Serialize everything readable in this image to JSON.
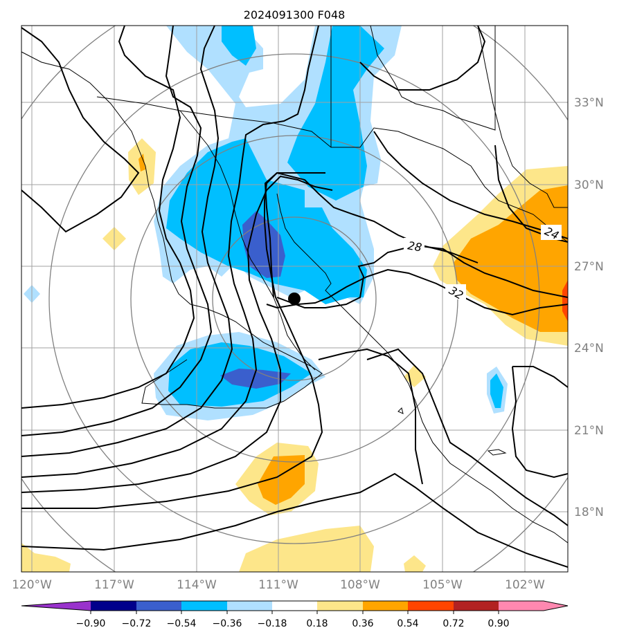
{
  "title": "2024091300 F048",
  "map": {
    "lat_labels": [
      "33°N",
      "30°N",
      "27°N",
      "24°N",
      "21°N",
      "18°N"
    ],
    "lon_labels": [
      "120°W",
      "117°W",
      "114°W",
      "111°W",
      "108°W",
      "105°W",
      "102°W"
    ],
    "contour_labels": [
      "28",
      "24",
      "32"
    ],
    "center_marker": "storm-center-dot"
  },
  "shading_colors": {
    "lt_-0.90": "#9932cc",
    "-0.90_-0.72": "#00008b",
    "-0.72_-0.54": "#3a5fcd",
    "-0.54_-0.36": "#00bfff",
    "-0.36_-0.18": "#b0e0ff",
    "-0.18_0.18": "#ffffff",
    "0.18_0.36": "#fde68a",
    "0.36_0.54": "#ffa500",
    "0.54_0.72": "#ff4500",
    "0.72_0.90": "#b22222",
    "gt_0.90": "#ff88b0"
  },
  "colorbar": {
    "tick_labels": [
      "−0.90",
      "−0.72",
      "−0.54",
      "−0.36",
      "−0.18",
      "0.18",
      "0.36",
      "0.54",
      "0.72",
      "0.90"
    ]
  }
}
